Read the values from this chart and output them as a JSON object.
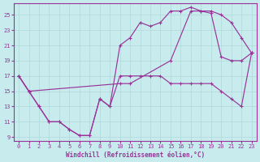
{
  "xlabel": "Windchill (Refroidissement éolien,°C)",
  "bg_color": "#c8eced",
  "line_color": "#993399",
  "grid_color": "#b0d8d8",
  "xlim": [
    -0.5,
    23.5
  ],
  "ylim": [
    8.5,
    26.5
  ],
  "xticks": [
    0,
    1,
    2,
    3,
    4,
    5,
    6,
    7,
    8,
    9,
    10,
    11,
    12,
    13,
    14,
    15,
    16,
    17,
    18,
    19,
    20,
    21,
    22,
    23
  ],
  "yticks": [
    9,
    11,
    13,
    15,
    17,
    19,
    21,
    23,
    25
  ],
  "curve1_x": [
    0,
    1,
    2,
    3,
    4,
    5,
    6,
    7,
    8,
    9,
    10,
    11,
    12,
    13,
    14,
    15,
    16,
    17,
    18,
    19,
    20,
    21,
    22,
    23
  ],
  "curve1_y": [
    17,
    15,
    13,
    11,
    11,
    10,
    9.2,
    9.2,
    14,
    13,
    17,
    17,
    17,
    17,
    17,
    16,
    16,
    16,
    16,
    16,
    15,
    14,
    13,
    20
  ],
  "curve2_x": [
    0,
    1,
    2,
    3,
    4,
    5,
    6,
    7,
    8,
    9,
    10,
    11,
    12,
    13,
    14,
    15,
    16,
    17,
    18,
    19,
    20,
    21,
    22,
    23
  ],
  "curve2_y": [
    17,
    15,
    13,
    11,
    11,
    10,
    9.2,
    9.2,
    14,
    13,
    21,
    22,
    24,
    23.5,
    24,
    25.5,
    25.5,
    26,
    25.5,
    25.5,
    25,
    24,
    22,
    20
  ],
  "curve3_x": [
    0,
    1,
    10,
    11,
    15,
    17,
    18,
    19,
    20,
    21,
    22,
    23
  ],
  "curve3_y": [
    17,
    15,
    16,
    16,
    19,
    25.5,
    25.5,
    25.2,
    19.5,
    19,
    19,
    20
  ]
}
